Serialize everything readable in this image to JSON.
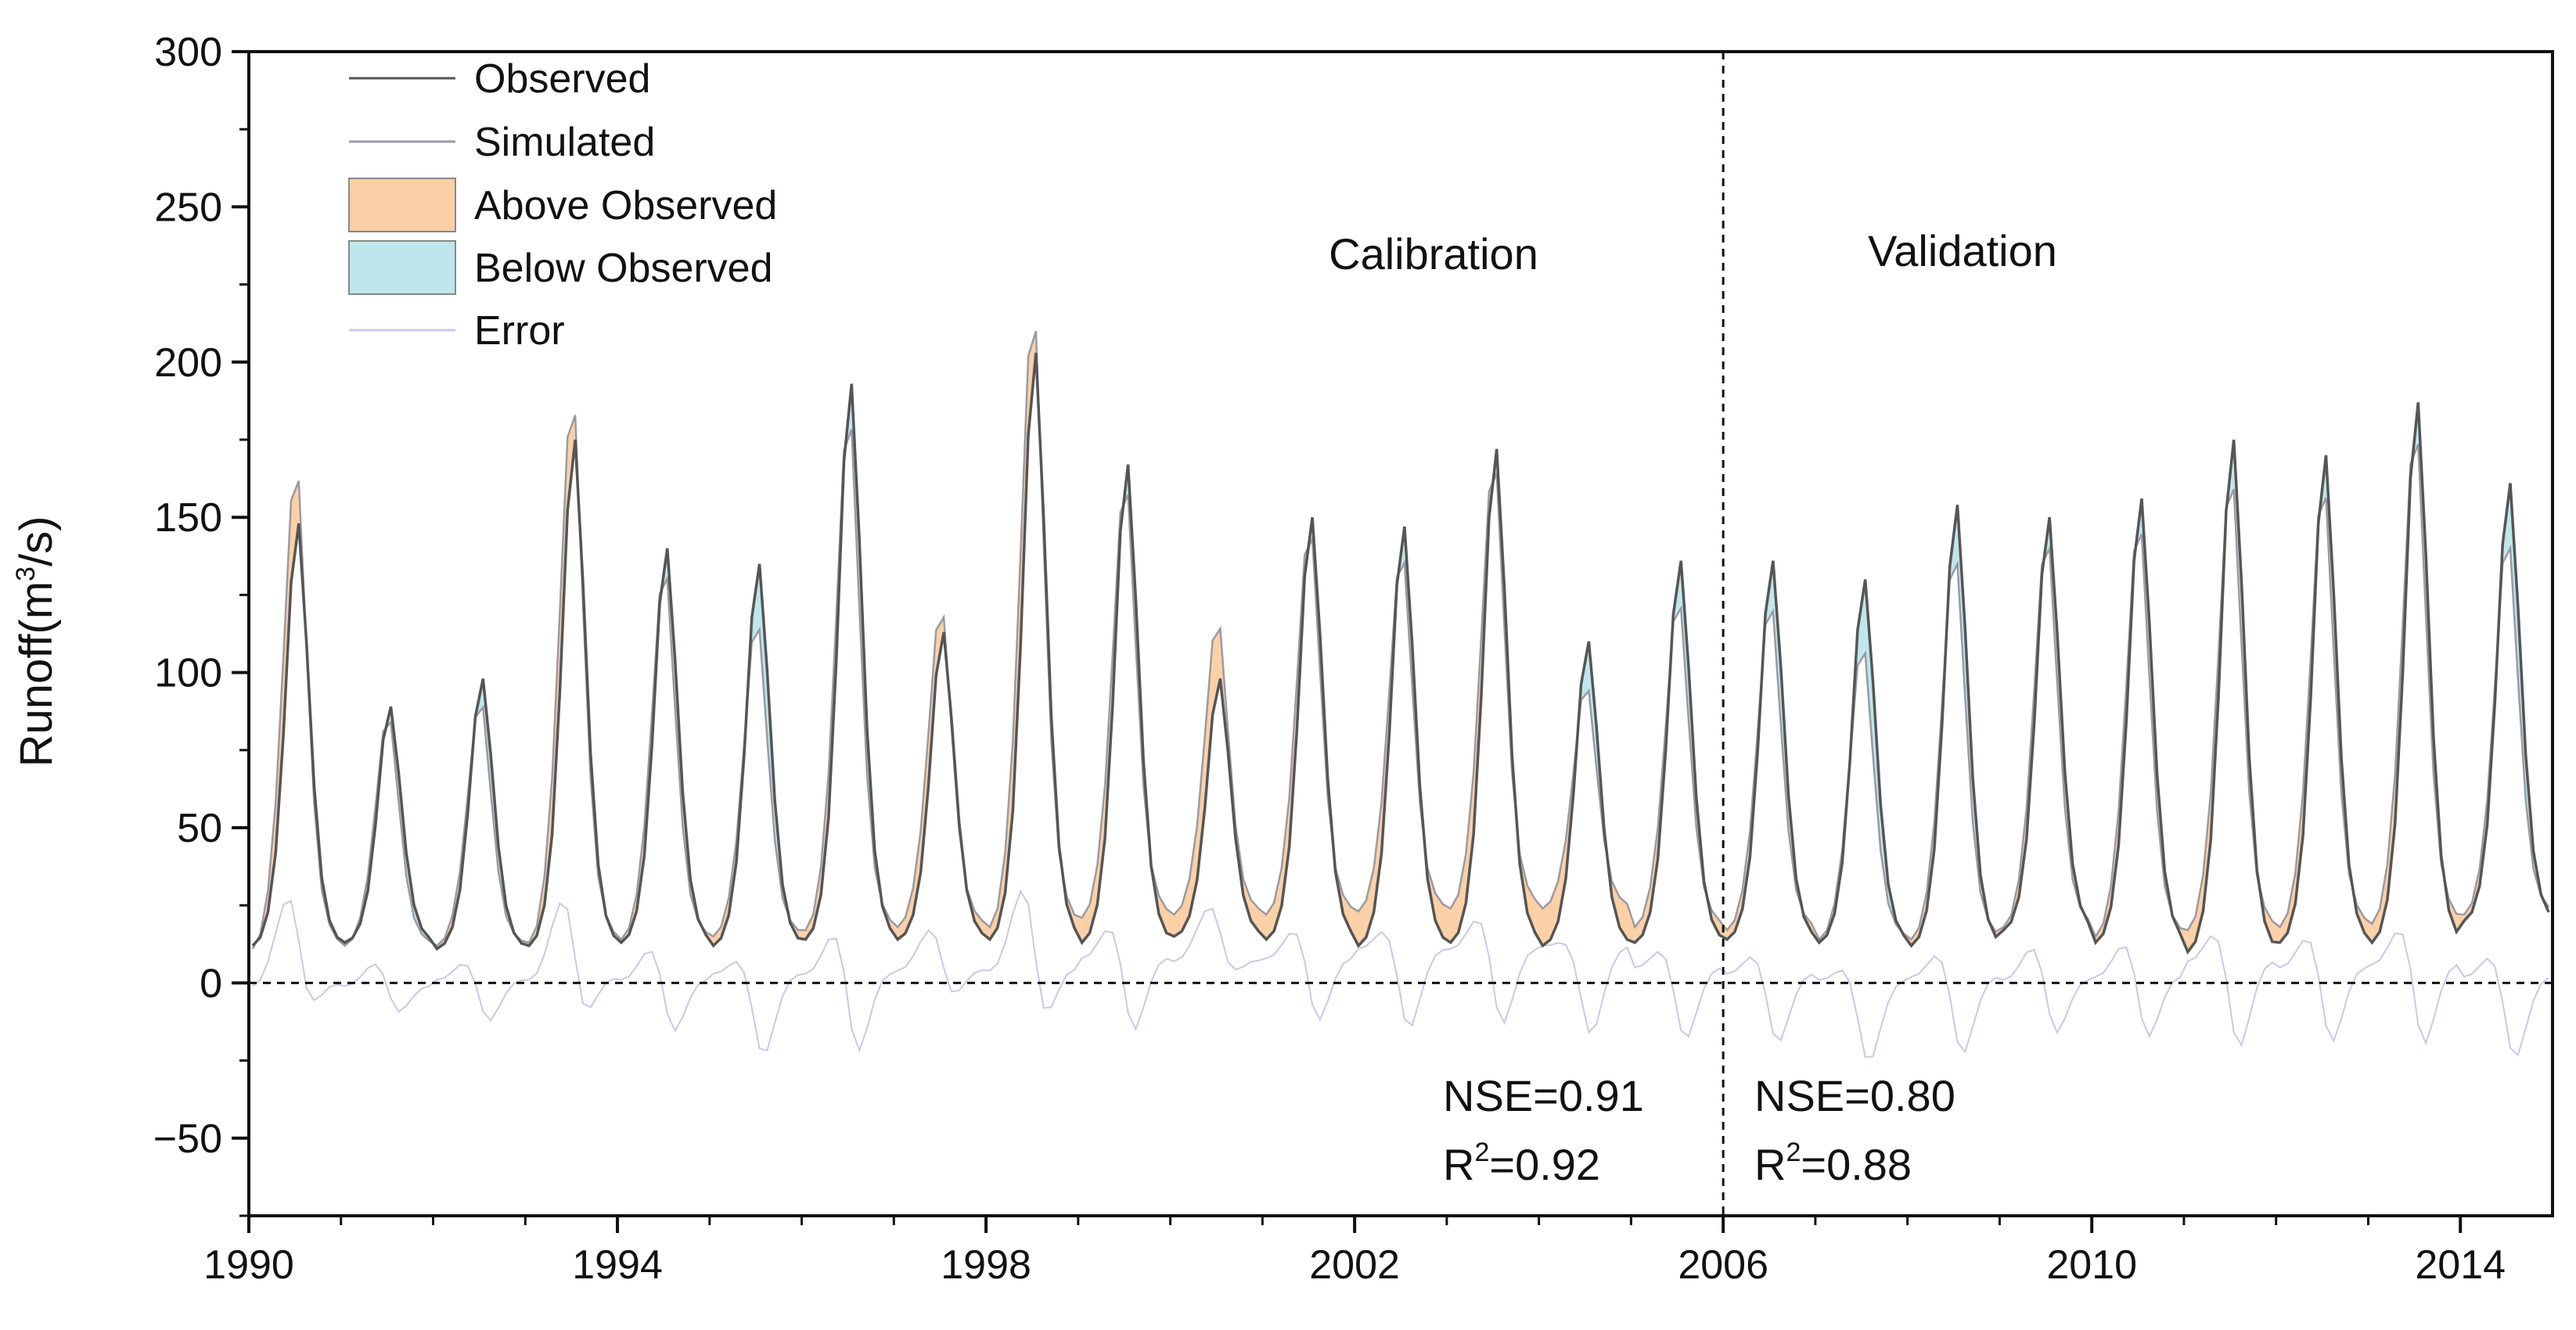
{
  "chart_data": {
    "type": "line",
    "xlabel": "",
    "ylabel": "Runoff(m³/s)",
    "ylabel_base": "Runoff(m",
    "ylabel_sup": "3",
    "ylabel_tail": "/s)",
    "xlim": [
      1990,
      2015
    ],
    "ylim": [
      -75,
      300
    ],
    "x_ticks": [
      1990,
      1994,
      1998,
      2002,
      2006,
      2010,
      2014
    ],
    "x_tick_labels": [
      "1990",
      "1994",
      "1998",
      "2002",
      "2006",
      "2010",
      "2014"
    ],
    "y_ticks": [
      -50,
      0,
      50,
      100,
      150,
      200,
      250,
      300
    ],
    "y_tick_labels": [
      "−50",
      "0",
      "50",
      "100",
      "150",
      "200",
      "250",
      "300"
    ],
    "grid": false,
    "legend_position": "top-left",
    "legend": [
      {
        "label": "Observed",
        "kind": "line",
        "color": "#555555"
      },
      {
        "label": "Simulated",
        "kind": "line",
        "color": "#9a9aa4"
      },
      {
        "label": "Above Observed",
        "kind": "fill",
        "color": "#fcd0a6"
      },
      {
        "label": "Below Observed",
        "kind": "fill",
        "color": "#bfe6ec"
      },
      {
        "label": "Error",
        "kind": "line",
        "color": "#c8c8ea"
      }
    ],
    "reference_lines": [
      {
        "orientation": "horizontal",
        "value": 0,
        "style": "dashed"
      },
      {
        "orientation": "vertical",
        "value": 2006,
        "style": "dashed"
      }
    ],
    "annotations": {
      "calibration_label": "Calibration",
      "validation_label": "Validation",
      "calib_nse": "NSE=0.91",
      "calib_r2_prefix": "R",
      "calib_r2_sup": "2",
      "calib_r2_value": "=0.92",
      "valid_nse": "NSE=0.80",
      "valid_r2_prefix": "R",
      "valid_r2_sup": "2",
      "valid_r2_value": "=0.88"
    },
    "annual_cycles": [
      {
        "year": 1990,
        "peak_observed": 148,
        "peak_simulated": 168,
        "min_observed": 12,
        "min_simulated": 11
      },
      {
        "year": 1991,
        "peak_observed": 89,
        "peak_simulated": 87,
        "min_observed": 13,
        "min_simulated": 12
      },
      {
        "year": 1992,
        "peak_observed": 98,
        "peak_simulated": 92,
        "min_observed": 11,
        "min_simulated": 12
      },
      {
        "year": 1993,
        "peak_observed": 175,
        "peak_simulated": 190,
        "min_observed": 12,
        "min_simulated": 13
      },
      {
        "year": 1994,
        "peak_observed": 140,
        "peak_simulated": 135,
        "min_observed": 13,
        "min_simulated": 14
      },
      {
        "year": 1995,
        "peak_observed": 135,
        "peak_simulated": 118,
        "min_observed": 12,
        "min_simulated": 15
      },
      {
        "year": 1996,
        "peak_observed": 193,
        "peak_simulated": 185,
        "min_observed": 14,
        "min_simulated": 17
      },
      {
        "year": 1997,
        "peak_observed": 113,
        "peak_simulated": 122,
        "min_observed": 14,
        "min_simulated": 18
      },
      {
        "year": 1998,
        "peak_observed": 203,
        "peak_simulated": 218,
        "min_observed": 14,
        "min_simulated": 18
      },
      {
        "year": 1999,
        "peak_observed": 167,
        "peak_simulated": 163,
        "min_observed": 13,
        "min_simulated": 21
      },
      {
        "year": 2000,
        "peak_observed": 98,
        "peak_simulated": 118,
        "min_observed": 15,
        "min_simulated": 22
      },
      {
        "year": 2001,
        "peak_observed": 150,
        "peak_simulated": 148,
        "min_observed": 14,
        "min_simulated": 22
      },
      {
        "year": 2002,
        "peak_observed": 147,
        "peak_simulated": 140,
        "min_observed": 12,
        "min_simulated": 23
      },
      {
        "year": 2003,
        "peak_observed": 172,
        "peak_simulated": 170,
        "min_observed": 13,
        "min_simulated": 24
      },
      {
        "year": 2004,
        "peak_observed": 110,
        "peak_simulated": 97,
        "min_observed": 12,
        "min_simulated": 24
      },
      {
        "year": 2005,
        "peak_observed": 136,
        "peak_simulated": 125,
        "min_observed": 13,
        "min_simulated": 18
      },
      {
        "year": 2006,
        "peak_observed": 136,
        "peak_simulated": 124,
        "min_observed": 14,
        "min_simulated": 17
      },
      {
        "year": 2007,
        "peak_observed": 130,
        "peak_simulated": 110,
        "min_observed": 13,
        "min_simulated": 14
      },
      {
        "year": 2008,
        "peak_observed": 154,
        "peak_simulated": 140,
        "min_observed": 12,
        "min_simulated": 14
      },
      {
        "year": 2009,
        "peak_observed": 150,
        "peak_simulated": 145,
        "min_observed": 17,
        "min_simulated": 18
      },
      {
        "year": 2010,
        "peak_observed": 156,
        "peak_simulated": 150,
        "min_observed": 13,
        "min_simulated": 15
      },
      {
        "year": 2011,
        "peak_observed": 175,
        "peak_simulated": 165,
        "min_observed": 10,
        "min_simulated": 17
      },
      {
        "year": 2012,
        "peak_observed": 170,
        "peak_simulated": 162,
        "min_observed": 13,
        "min_simulated": 18
      },
      {
        "year": 2013,
        "peak_observed": 187,
        "peak_simulated": 180,
        "min_observed": 13,
        "min_simulated": 19
      },
      {
        "year": 2014,
        "peak_observed": 161,
        "peak_simulated": 145,
        "min_observed": 20,
        "min_simulated": 22
      }
    ]
  }
}
